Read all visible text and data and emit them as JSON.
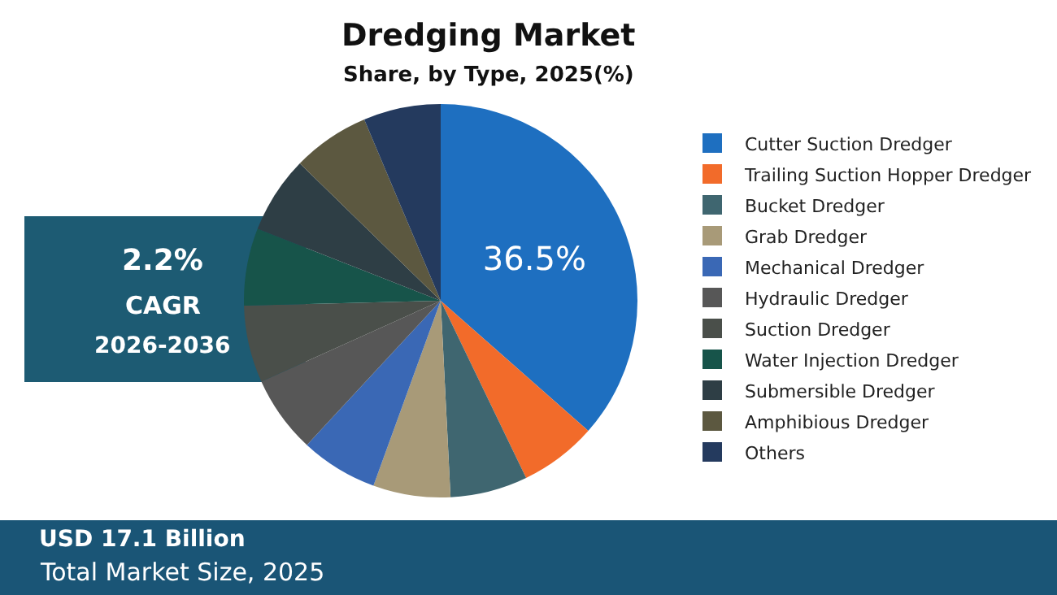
{
  "chart_data": {
    "type": "pie",
    "title": "Dredging Market",
    "subtitle": "Share, by Type, 2025(%)",
    "categories": [
      "Cutter Suction Dredger",
      "Trailing Suction Hopper Dredger",
      "Bucket Dredger",
      "Grab Dredger",
      "Mechanical Dredger",
      "Hydraulic Dredger",
      "Suction Dredger",
      "Water Injection Dredger",
      "Submersible Dredger",
      "Amphibious Dredger",
      "Others"
    ],
    "values": [
      36.5,
      6.35,
      6.35,
      6.35,
      6.35,
      6.35,
      6.35,
      6.35,
      6.35,
      6.35,
      6.35
    ],
    "value_labels": [
      "36.5%",
      null,
      null,
      null,
      null,
      null,
      null,
      null,
      null,
      null,
      null
    ],
    "colors": [
      "#1e6fc0",
      "#f26b2a",
      "#3f6670",
      "#a89a78",
      "#3a68b5",
      "#575757",
      "#4a4f4a",
      "#17544a",
      "#2e3e45",
      "#5c5840",
      "#243a5e"
    ],
    "legend": "right",
    "annotations": [
      "2.2%",
      "CAGR",
      "2026-2036",
      "USD 17.1 Billion",
      "Total Market Size, 2025"
    ]
  }
}
